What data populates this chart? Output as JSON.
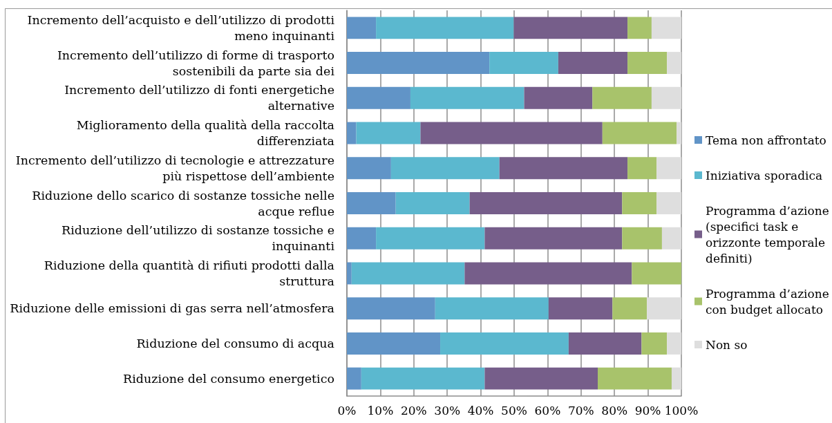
{
  "chart_data": {
    "type": "bar",
    "orientation": "horizontal",
    "stacked": true,
    "categories": [
      "Incremento dell’acquisto e dell’utilizzo di prodotti meno inquinanti",
      "Incremento dell’utilizzo di forme di trasporto sostenibili da parte sia dei",
      "Incremento dell’utilizzo di fonti energetiche alternative",
      "Miglioramento della qualità della raccolta differenziata",
      "Incremento dell’utilizzo di tecnologie e attrezzature più rispettose dell’ambiente",
      "Riduzione dello scarico di sostanze tossiche nelle acque reflue",
      "Riduzione dell’utilizzo di sostanze tossiche e inquinanti",
      "Riduzione della quantità di rifiuti prodotti dalla struttura",
      "Riduzione delle emissioni di gas serra nell’atmosfera",
      "Riduzione del consumo di acqua",
      "Riduzione del consumo energetico"
    ],
    "series": [
      {
        "name": "Tema non affrontato",
        "color": "#6194c7",
        "values": [
          8.7,
          42.6,
          19.0,
          2.8,
          13.2,
          14.6,
          8.7,
          1.4,
          26.4,
          27.9,
          4.3
        ]
      },
      {
        "name": "Iniziativa sporadica",
        "color": "#5bb8cf",
        "values": [
          41.2,
          20.6,
          34.0,
          19.2,
          32.4,
          22.1,
          32.5,
          33.8,
          33.9,
          38.4,
          36.9
        ]
      },
      {
        "name": "Programma d’azione (specifici task e orizzonte temporale definiti)",
        "color": "#765e8a",
        "values": [
          34.0,
          20.7,
          20.4,
          54.4,
          38.3,
          45.6,
          41.1,
          50.0,
          19.1,
          21.8,
          33.8
        ]
      },
      {
        "name": "Programma d’azione con budget allocato",
        "color": "#a8c36b",
        "values": [
          7.2,
          11.8,
          17.7,
          22.2,
          8.7,
          10.3,
          11.9,
          14.8,
          10.3,
          7.6,
          22.1
        ]
      },
      {
        "name": "Non so",
        "color": "#dedede",
        "values": [
          8.9,
          4.3,
          8.9,
          1.4,
          7.4,
          7.4,
          5.8,
          0,
          10.3,
          4.3,
          2.9
        ]
      }
    ],
    "xlim": [
      0,
      100
    ],
    "xticks": [
      {
        "value": 0,
        "label": "0%"
      },
      {
        "value": 10,
        "label": "10%"
      },
      {
        "value": 20,
        "label": "20%"
      },
      {
        "value": 30,
        "label": "30%"
      },
      {
        "value": 40,
        "label": "40%"
      },
      {
        "value": 50,
        "label": "50%"
      },
      {
        "value": 60,
        "label": "60%"
      },
      {
        "value": 70,
        "label": "70%"
      },
      {
        "value": 80,
        "label": "80%"
      },
      {
        "value": 90,
        "label": "90%"
      },
      {
        "value": 100,
        "label": "100%"
      }
    ],
    "grid": "x",
    "legend": "right"
  }
}
